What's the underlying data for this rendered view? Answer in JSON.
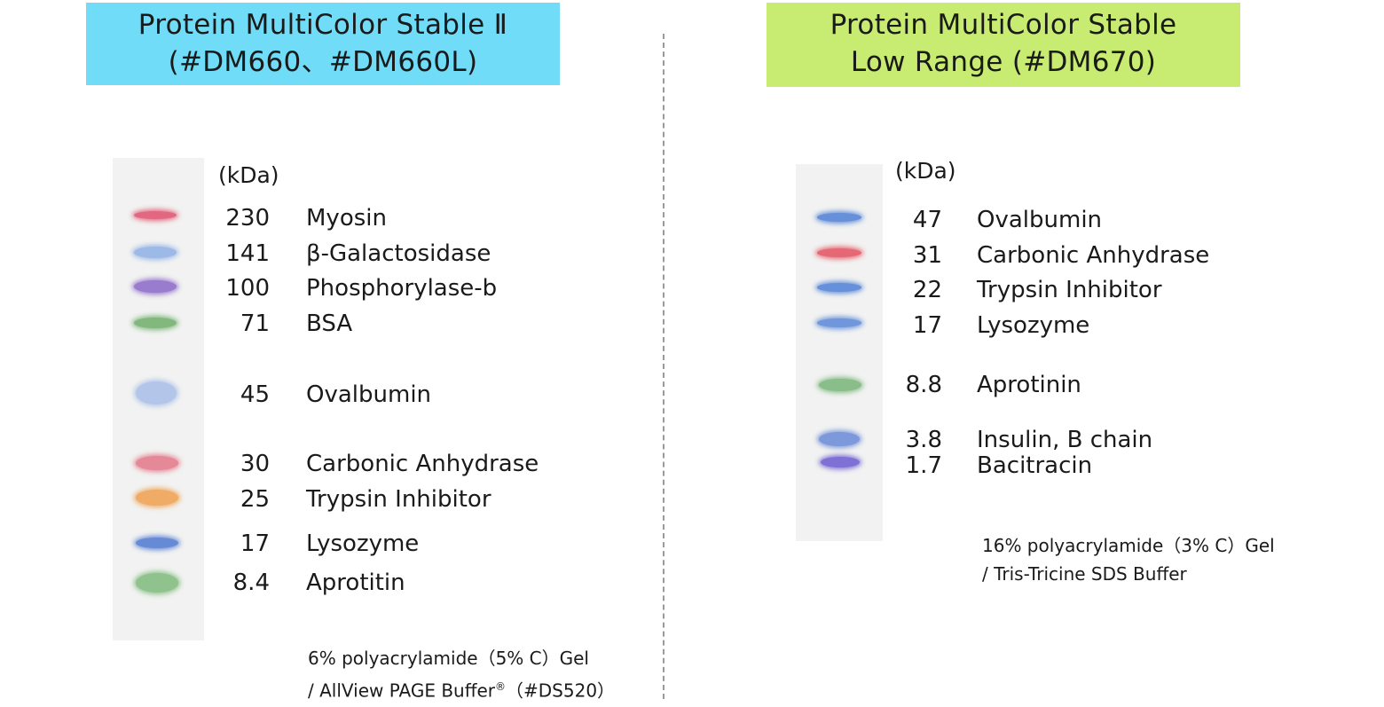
{
  "left": {
    "title_line1": "Protein MultiColor Stable Ⅱ",
    "title_line2": "(#DM660、#DM660L)",
    "unit": "(kDa)",
    "markers": [
      {
        "mw": "230",
        "name": "Myosin",
        "color": "#e0506e"
      },
      {
        "mw": "141",
        "name": "β-Galactosidase",
        "color": "#8fb0e6"
      },
      {
        "mw": "100",
        "name": "Phosphorylase-b",
        "color": "#8a68c8"
      },
      {
        "mw": "71",
        "name": "BSA",
        "color": "#6fae6a"
      },
      {
        "mw": "45",
        "name": "Ovalbumin",
        "color": "#a9bfe8"
      },
      {
        "mw": "30",
        "name": "Carbonic Anhydrase",
        "color": "#e4778a"
      },
      {
        "mw": "25",
        "name": "Trypsin Inhibitor",
        "color": "#f0a050"
      },
      {
        "mw": "17",
        "name": "Lysozyme",
        "color": "#4f79d2"
      },
      {
        "mw": "8.4",
        "name": "Aprotitin",
        "color": "#7fba7c"
      }
    ],
    "footnote_line1": "6% polyacrylamide（5% C）Gel",
    "footnote_line2_a": "/ AllView PAGE Buffer",
    "footnote_line2_reg": "®",
    "footnote_line2_b": "（#DS520）"
  },
  "right": {
    "title_line1": "Protein MultiColor Stable",
    "title_line2": "Low Range (#DM670)",
    "unit": "(kDa)",
    "markers": [
      {
        "mw": "47",
        "name": "Ovalbumin",
        "color": "#5080d6"
      },
      {
        "mw": "31",
        "name": "Carbonic Anhydrase",
        "color": "#e55060"
      },
      {
        "mw": "22",
        "name": "Trypsin Inhibitor",
        "color": "#5080d6"
      },
      {
        "mw": "17",
        "name": "Lysozyme",
        "color": "#5a86d8"
      },
      {
        "mw": "8.8",
        "name": "Aprotinin",
        "color": "#78b478"
      },
      {
        "mw": "3.8",
        "name": "Insulin, B chain",
        "color": "#6a8ad8"
      },
      {
        "mw": "1.7",
        "name": "Bacitracin",
        "color": "#6a5ad0"
      }
    ],
    "footnote_line1": "16% polyacrylamide（3% C）Gel",
    "footnote_line2": "/ Tris-Tricine SDS Buffer"
  }
}
